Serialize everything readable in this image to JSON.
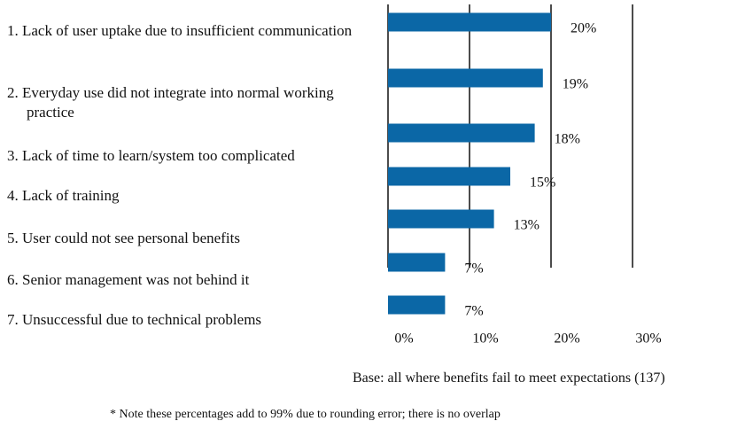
{
  "chart_data": {
    "type": "bar",
    "orientation": "horizontal",
    "categories": [
      "1. Lack of user uptake due to insufficient communication",
      "2. Everyday use did not integrate into normal working practice",
      "3. Lack of time to learn/system too complicated",
      "4. Lack of training",
      "5. User could not see personal benefits",
      "6. Senior management was not behind it",
      "7. Unsuccessful due to technical problems"
    ],
    "values": [
      20,
      19,
      18,
      15,
      13,
      7,
      7
    ],
    "value_labels": [
      "20%",
      "19%",
      "18%",
      "15%",
      "13%",
      "7%",
      "7%"
    ],
    "color": "#0b67a6",
    "xlim": [
      0,
      30
    ],
    "xticks": [
      {
        "value": 0,
        "label": "0%"
      },
      {
        "value": 10,
        "label": "10%"
      },
      {
        "value": 20,
        "label": "20%"
      },
      {
        "value": 30,
        "label": "30%"
      }
    ],
    "grid": true,
    "base_note": "Base: all where benefits fail to meet expectations (137)",
    "footnote": "* Note these percentages add to 99% due to rounding error; there is no overlap"
  }
}
